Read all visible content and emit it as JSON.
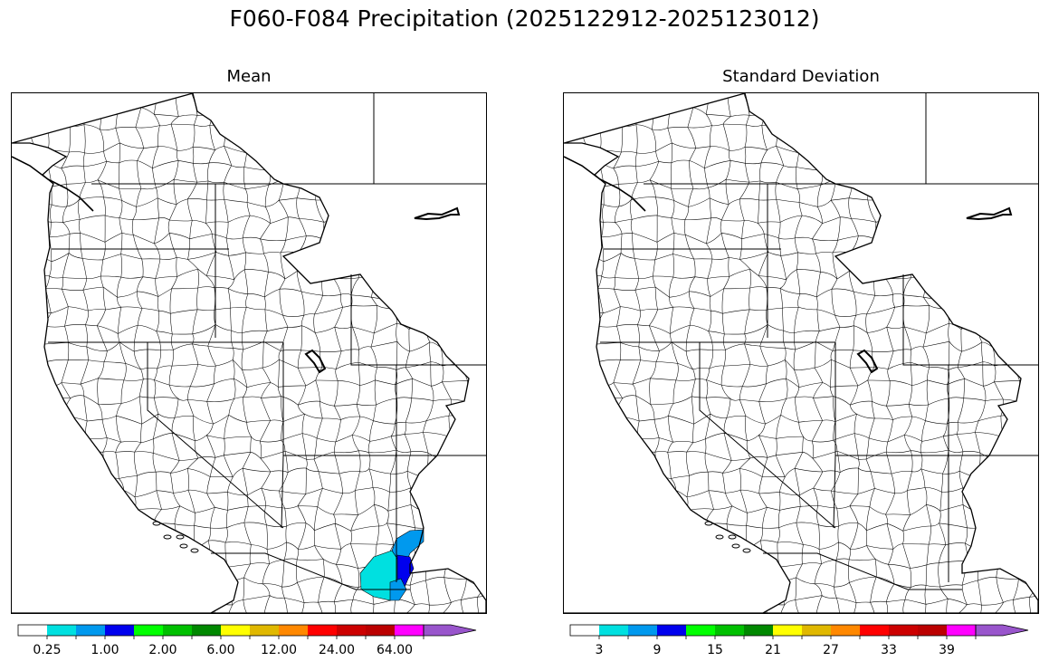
{
  "title": "F060-F084 Precipitation (2025122912-2025123012)",
  "panels": [
    {
      "title": "Mean",
      "colorbar": {
        "colors": [
          "#ffffff",
          "#00e0e0",
          "#0099ee",
          "#0000ee",
          "#00ff00",
          "#00c000",
          "#008800",
          "#ffff00",
          "#e0b800",
          "#ff8800",
          "#ff0000",
          "#cc0000",
          "#bb0000",
          "#ff00ff",
          "#9955cc"
        ],
        "tick_labels": [
          "0.25",
          "1.00",
          "2.00",
          "6.00",
          "12.00",
          "24.00",
          "64.00"
        ]
      }
    },
    {
      "title": "Standard Deviation",
      "colorbar": {
        "colors": [
          "#ffffff",
          "#00e0e0",
          "#0099ee",
          "#0000ee",
          "#00ff00",
          "#00c000",
          "#008800",
          "#ffff00",
          "#e0b800",
          "#ff8800",
          "#ff0000",
          "#cc0000",
          "#bb0000",
          "#ff00ff",
          "#9955cc"
        ],
        "tick_labels": [
          "3",
          "9",
          "15",
          "21",
          "27",
          "33",
          "39"
        ]
      }
    }
  ],
  "map": {
    "region": "Western United States river basins",
    "highlight_basins": [
      {
        "color": "#00e0e0"
      },
      {
        "color": "#0099ee"
      },
      {
        "color": "#0000ee"
      }
    ]
  }
}
